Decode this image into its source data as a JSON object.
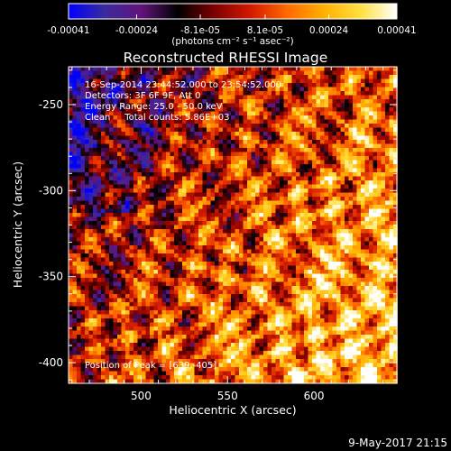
{
  "colorbar": {
    "tick_labels": [
      "-0.00041",
      "-0.00024",
      "-8.1e-05",
      "8.1e-05",
      "0.00024",
      "0.00041"
    ],
    "tick_values": [
      -0.00041,
      -0.00024,
      -8.1e-05,
      8.1e-05,
      0.00024,
      0.00041
    ],
    "range": [
      -0.00041,
      0.00041
    ],
    "units_label": "(photons cm⁻² s⁻¹ asec⁻²)"
  },
  "chart_data": {
    "type": "heatmap",
    "title": "Reconstructed RHESSI Image",
    "xlabel": "Heliocentric X (arcsec)",
    "ylabel": "Heliocentric Y (arcsec)",
    "xlim": [
      458,
      648
    ],
    "ylim": [
      -412,
      -228
    ],
    "x_ticks": [
      500,
      550,
      600
    ],
    "y_ticks": [
      -400,
      -350,
      -300,
      -250
    ],
    "info_lines": [
      "16-Sep-2014 23:44:52.000 to 23:54:52.000",
      "Detectors: 3F 6F 9F, Att 0",
      "Energy Range: 25.0 - 50.0 keV",
      "Clean     Total counts: 5.86E+03"
    ],
    "peak_label": "Position of Peak = [639,-405]",
    "peak_position": [
      639,
      -405
    ],
    "colormap": [
      "#0000ff",
      "#3c2a9e",
      "#60147a",
      "#000000",
      "#7d0000",
      "#d41a00",
      "#ff6a00",
      "#ffb000",
      "#ffe040",
      "#ffffff"
    ]
  },
  "footer": {
    "timestamp": "9-May-2017 21:15"
  }
}
